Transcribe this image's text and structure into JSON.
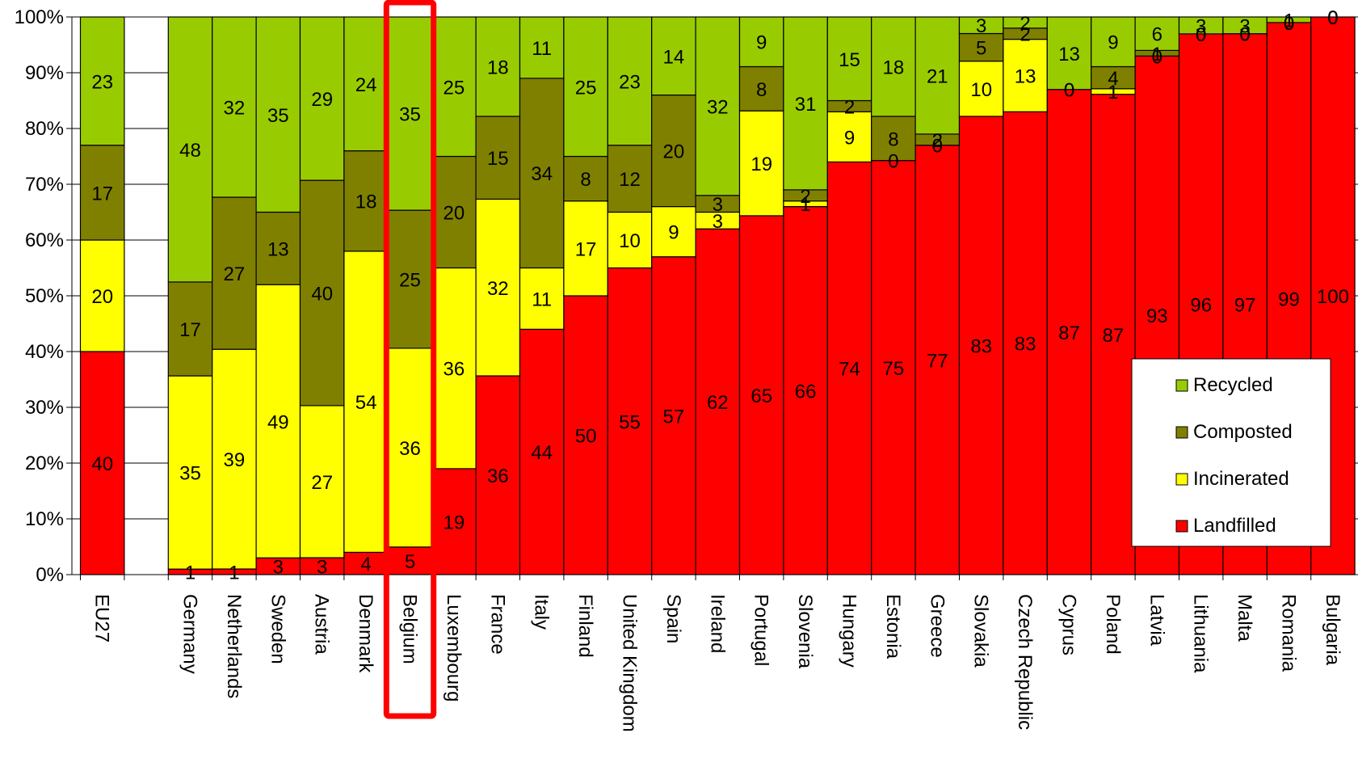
{
  "colors": {
    "Recycled": "#99cc00",
    "Composted": "#808000",
    "Incinerated": "#ffff00",
    "Landfilled": "#ff0000",
    "highlight": "#ff0000"
  },
  "highlight_category": "Belgium",
  "chart_data": {
    "type": "bar",
    "stacked": true,
    "title": "",
    "xlabel": "",
    "ylabel": "",
    "ylim": [
      0,
      100
    ],
    "y_ticks": [
      "0%",
      "10%",
      "20%",
      "30%",
      "40%",
      "50%",
      "60%",
      "70%",
      "80%",
      "90%",
      "100%"
    ],
    "grid": true,
    "legend_position": "right",
    "categories": [
      "EU27",
      "",
      "Germany",
      "Netherlands",
      "Sweden",
      "Austria",
      "Denmark",
      "Belgium",
      "Luxembourg",
      "France",
      "Italy",
      "Finland",
      "United Kingdom",
      "Spain",
      "Ireland",
      "Portugal",
      "Slovenia",
      "Hungary",
      "Estonia",
      "Greece",
      "Slovakia",
      "Czech Republic",
      "Cyprus",
      "Poland",
      "Latvia",
      "Lithuania",
      "Malta",
      "Romania",
      "Bulgaria"
    ],
    "series": [
      {
        "name": "Landfilled",
        "values": [
          40,
          null,
          1,
          1,
          3,
          3,
          4,
          5,
          19,
          36,
          44,
          50,
          55,
          57,
          62,
          65,
          66,
          74,
          75,
          77,
          83,
          83,
          87,
          87,
          93,
          96,
          97,
          99,
          100
        ]
      },
      {
        "name": "Incinerated",
        "values": [
          20,
          null,
          35,
          39,
          49,
          27,
          54,
          36,
          36,
          32,
          11,
          17,
          10,
          9,
          3,
          19,
          1,
          9,
          0,
          0,
          10,
          13,
          0,
          1,
          0,
          0,
          0,
          0,
          0
        ]
      },
      {
        "name": "Composted",
        "values": [
          17,
          null,
          17,
          27,
          13,
          40,
          18,
          25,
          20,
          15,
          34,
          8,
          12,
          20,
          3,
          8,
          2,
          2,
          8,
          2,
          5,
          2,
          0,
          4,
          1,
          0,
          0,
          0,
          0
        ]
      },
      {
        "name": "Recycled",
        "values": [
          23,
          null,
          48,
          32,
          35,
          29,
          24,
          35,
          25,
          18,
          11,
          25,
          23,
          14,
          32,
          9,
          31,
          15,
          18,
          21,
          3,
          2,
          13,
          9,
          6,
          3,
          3,
          1,
          0
        ]
      }
    ]
  }
}
